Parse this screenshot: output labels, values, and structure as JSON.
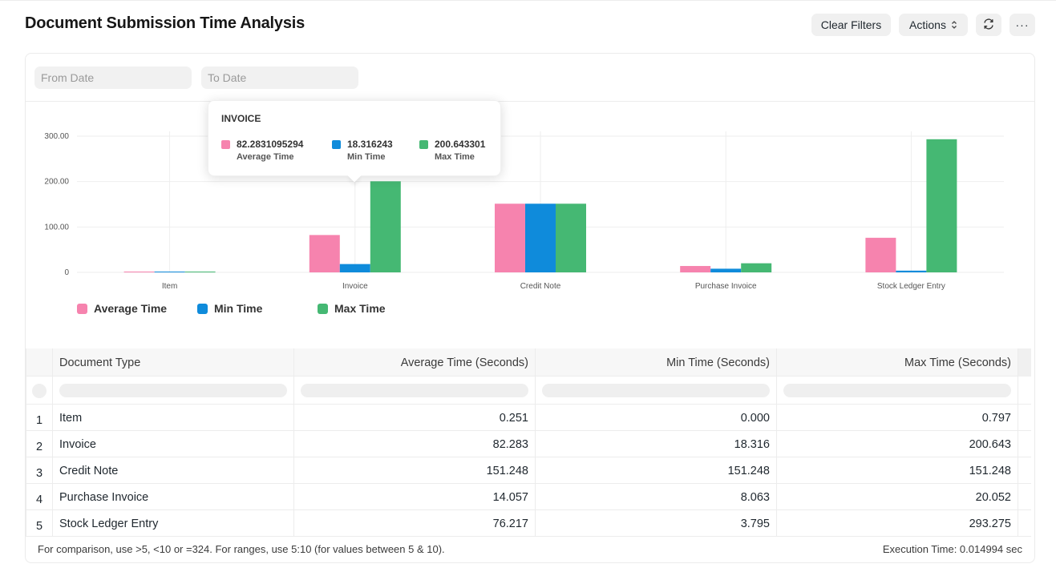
{
  "page": {
    "title": "Document Submission Time Analysis"
  },
  "toolbar": {
    "clear_filters_label": "Clear Filters",
    "actions_label": "Actions",
    "refresh_icon": "refresh-icon",
    "more_icon": "more-horizontal-icon",
    "more_label": "···"
  },
  "filters": {
    "from_date_placeholder": "From Date",
    "to_date_placeholder": "To Date"
  },
  "colors": {
    "average": "#f683ae",
    "min": "#0f8bdb",
    "max": "#45b873"
  },
  "chart_data": {
    "type": "bar",
    "categories": [
      "Item",
      "Invoice",
      "Credit Note",
      "Purchase Invoice",
      "Stock Ledger Entry"
    ],
    "series": [
      {
        "name": "Average Time",
        "values": [
          0.251,
          82.283,
          151.248,
          14.057,
          76.217
        ]
      },
      {
        "name": "Min Time",
        "values": [
          0.0,
          18.316,
          151.248,
          8.063,
          3.795
        ]
      },
      {
        "name": "Max Time",
        "values": [
          0.797,
          200.643,
          151.248,
          20.052,
          293.275
        ]
      }
    ],
    "yticks": [
      "0",
      "100.00",
      "200.00",
      "300.00"
    ],
    "ylim": [
      0,
      300
    ],
    "grid": true,
    "legend": "bottom-left"
  },
  "tooltip": {
    "title": "INVOICE",
    "items": [
      {
        "value": "82.2831095294",
        "label": "Average Time"
      },
      {
        "value": "18.316243",
        "label": "Min Time"
      },
      {
        "value": "200.643301",
        "label": "Max Time"
      }
    ]
  },
  "table": {
    "columns": [
      "Document Type",
      "Average Time (Seconds)",
      "Min Time (Seconds)",
      "Max Time (Seconds)"
    ],
    "rows": [
      {
        "index": "1",
        "type": "Item",
        "avg": "0.251",
        "min": "0.000",
        "max": "0.797"
      },
      {
        "index": "2",
        "type": "Invoice",
        "avg": "82.283",
        "min": "18.316",
        "max": "200.643"
      },
      {
        "index": "3",
        "type": "Credit Note",
        "avg": "151.248",
        "min": "151.248",
        "max": "151.248"
      },
      {
        "index": "4",
        "type": "Purchase Invoice",
        "avg": "14.057",
        "min": "8.063",
        "max": "20.052"
      },
      {
        "index": "5",
        "type": "Stock Ledger Entry",
        "avg": "76.217",
        "min": "3.795",
        "max": "293.275"
      }
    ]
  },
  "footer": {
    "help_text": "For comparison, use >5, <10 or =324. For ranges, use 5:10 (for values between 5 & 10).",
    "execution_time": "Execution Time: 0.014994 sec"
  }
}
